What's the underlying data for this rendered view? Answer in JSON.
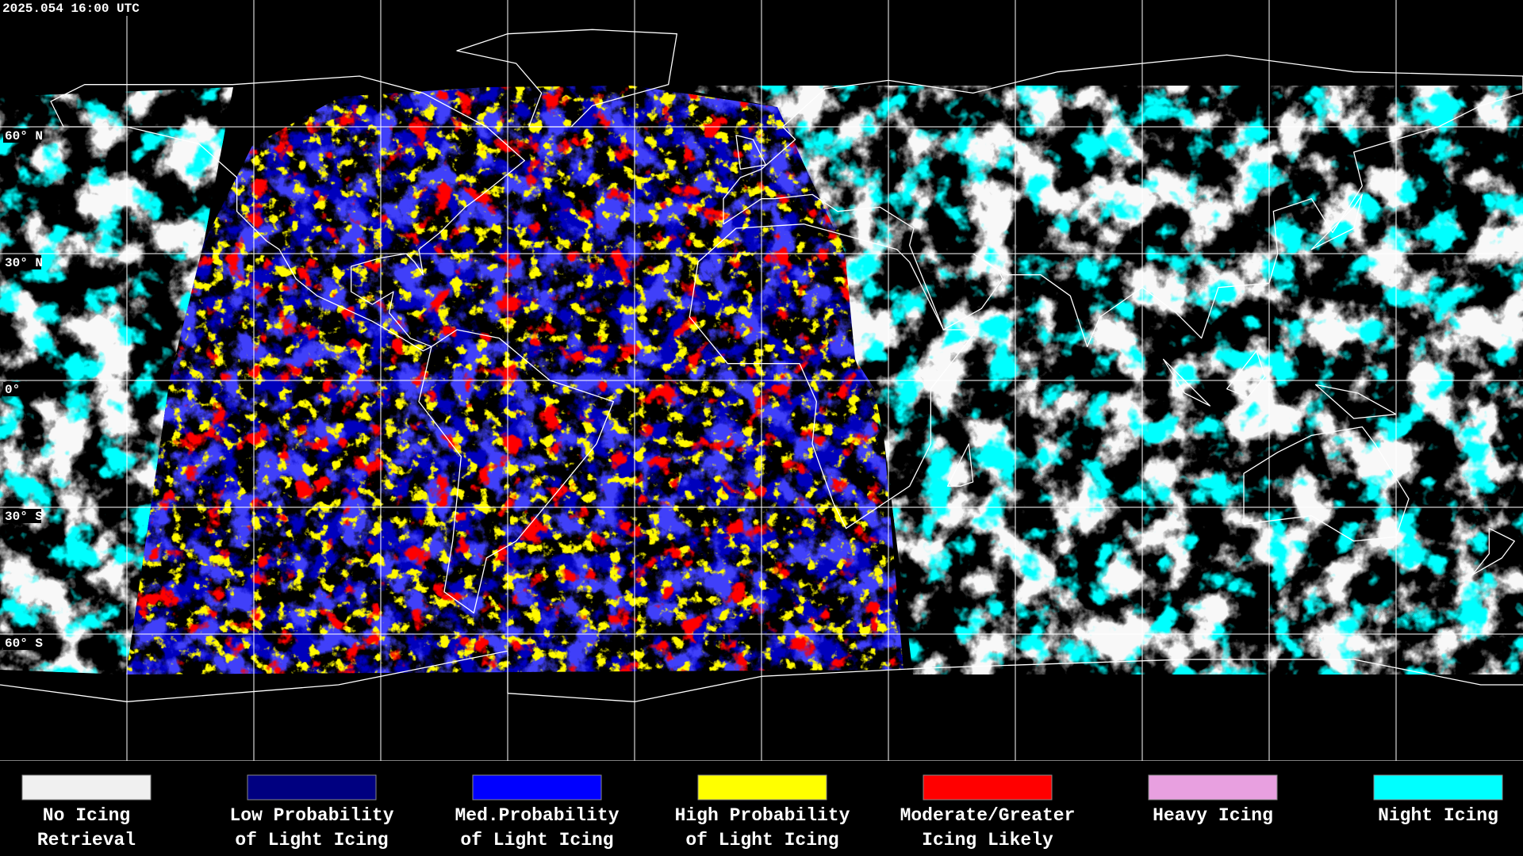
{
  "header": {
    "timestamp": "2025.054 16:00 UTC"
  },
  "grid": {
    "lat_labels": [
      "60° N",
      "30° N",
      "0°",
      "30° S",
      "60° S"
    ]
  },
  "legend": {
    "items": [
      {
        "color": "#f0f0f0",
        "label": [
          "No Icing",
          "Retrieval"
        ]
      },
      {
        "color": "#000080",
        "label": [
          "Low Probability",
          "of Light Icing"
        ]
      },
      {
        "color": "#0000ff",
        "label": [
          "Med.Probability",
          "of Light Icing"
        ]
      },
      {
        "color": "#ffff00",
        "label": [
          "High Probability",
          "of Light Icing"
        ]
      },
      {
        "color": "#ff0000",
        "label": [
          "Moderate/Greater",
          "Icing Likely"
        ]
      },
      {
        "color": "#e8a0e0",
        "label": [
          "Heavy Icing",
          ""
        ]
      },
      {
        "color": "#00ffff",
        "label": [
          "Night Icing",
          ""
        ]
      }
    ]
  }
}
